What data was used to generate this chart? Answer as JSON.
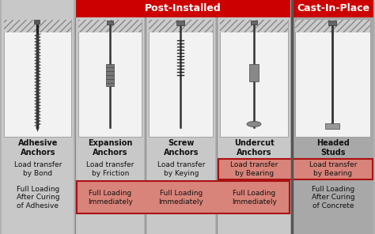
{
  "bg_color": "#b0b0b0",
  "header_red": "#cc0000",
  "header_text_color": "#ffffff",
  "post_installed_header": "Post-Installed",
  "cast_header": "Cast-In-Place",
  "columns": [
    {
      "name": "Adhesive\nAnchors",
      "load_transfer": "Load transfer\nby Bond",
      "full_loading": "Full Loading\nAfter Curing\nof Adhesive",
      "highlight_load": false,
      "highlight_full": false,
      "section": "post_left"
    },
    {
      "name": "Expansion\nAnchors",
      "load_transfer": "Load transfer\nby Friction",
      "full_loading": "Full Loading\nImmediately",
      "highlight_load": false,
      "highlight_full": true,
      "section": "post"
    },
    {
      "name": "Screw\nAnchors",
      "load_transfer": "Load transfer\nby Keying",
      "full_loading": "Full Loading\nImmediately",
      "highlight_load": false,
      "highlight_full": true,
      "section": "post"
    },
    {
      "name": "Undercut\nAnchors",
      "load_transfer": "Load transfer\nby Bearing",
      "full_loading": "Full Loading\nImmediately",
      "highlight_load": true,
      "highlight_full": true,
      "section": "post"
    },
    {
      "name": "Headed\nStuds",
      "load_transfer": "Load transfer\nby Bearing",
      "full_loading": "Full Loading\nAfter Curing\nof Concrete",
      "highlight_load": true,
      "highlight_full": false,
      "section": "cast"
    }
  ],
  "highlight_color": "#d9847a",
  "highlight_border": "#aa1111",
  "col_bg_light": "#c8c8c8",
  "col_bg_mid": "#b8b8b8",
  "col_bg_dark": "#a8a8a8",
  "image_bg": "#f2f2f2",
  "hatch_bg": "#cccccc",
  "name_fontsize": 7.0,
  "load_fontsize": 6.5,
  "full_fontsize": 6.5,
  "header_fontsize": 9.0
}
